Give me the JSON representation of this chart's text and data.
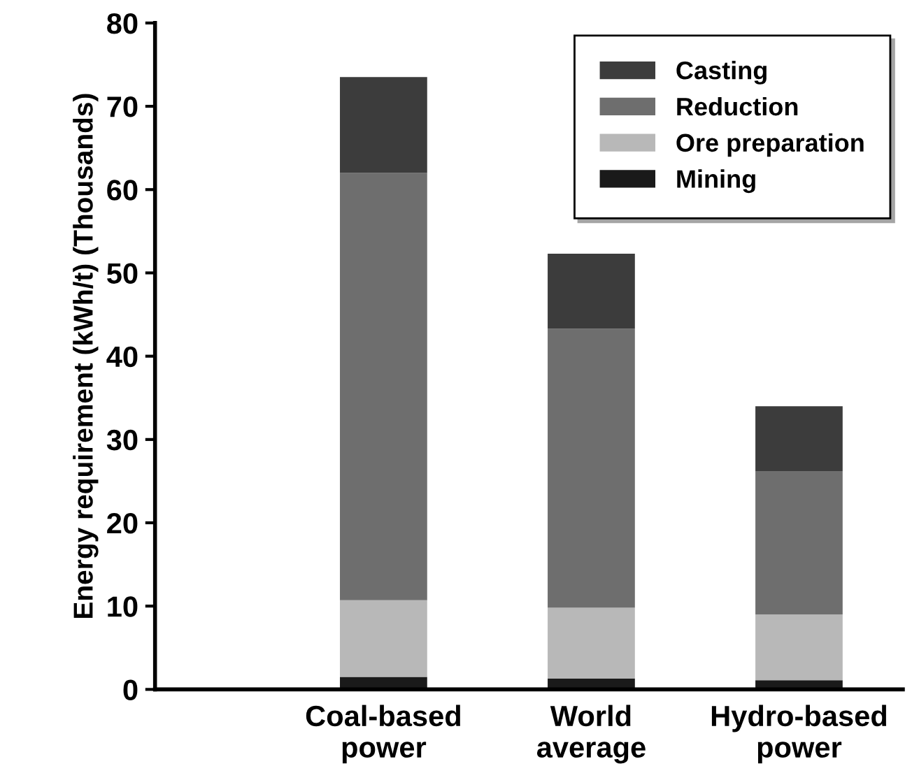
{
  "chart_data": {
    "type": "bar",
    "stacked": true,
    "ylabel": "Energy requirement (kWh/t) (Thousands)",
    "categories": [
      "Coal-based\npower",
      "World\naverage",
      "Hydro-based\npower"
    ],
    "series": [
      {
        "name": "Mining",
        "color": "#1a1a1a",
        "values": [
          1.5,
          1.3,
          1.1
        ]
      },
      {
        "name": "Ore preparation",
        "color": "#b8b8b8",
        "values": [
          9.2,
          8.5,
          7.9
        ]
      },
      {
        "name": "Reduction",
        "color": "#6e6e6e",
        "values": [
          51.3,
          33.5,
          17.2
        ]
      },
      {
        "name": "Casting",
        "color": "#3c3c3c",
        "values": [
          11.5,
          9.0,
          7.8
        ]
      }
    ],
    "ylim": [
      0,
      80
    ],
    "yticks": [
      0,
      10,
      20,
      30,
      40,
      50,
      60,
      70,
      80
    ],
    "grid": false,
    "legend": "top right"
  }
}
